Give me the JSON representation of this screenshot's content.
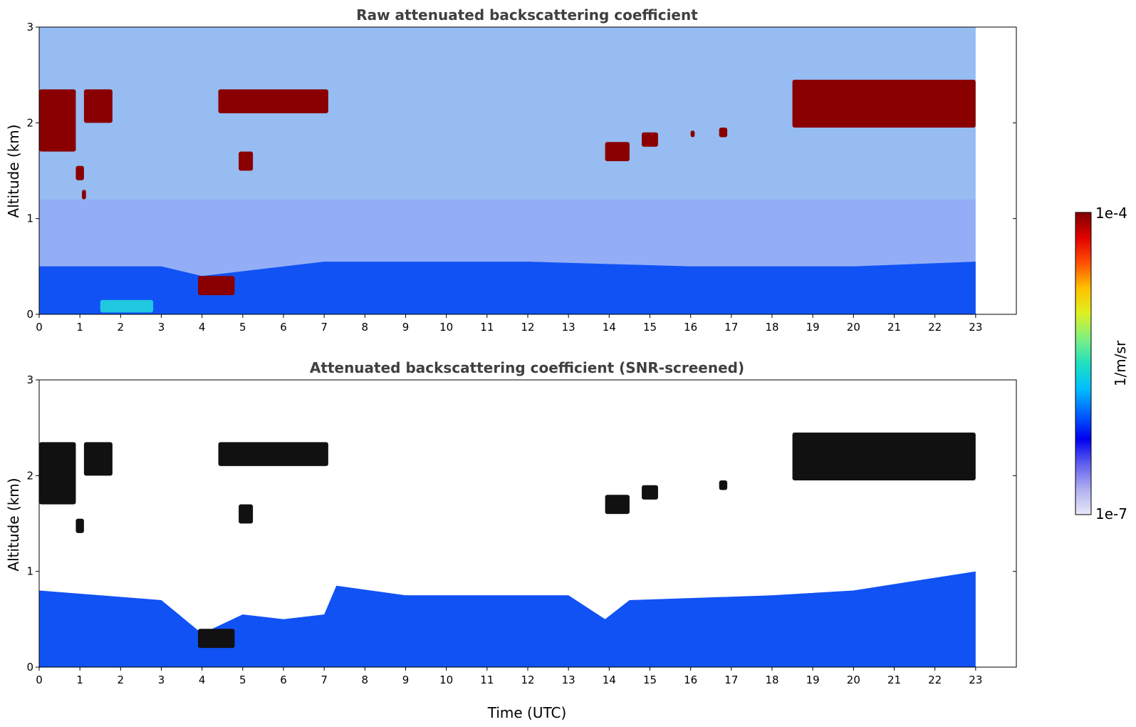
{
  "chart_data": [
    {
      "type": "heatmap",
      "title": "Raw attenuated backscattering coefficient",
      "xlabel": "",
      "ylabel": "Altitude (km)",
      "xlim": [
        0,
        24
      ],
      "ylim": [
        0,
        3
      ],
      "x_ticks": [
        "0",
        "1",
        "2",
        "3",
        "4",
        "5",
        "6",
        "7",
        "8",
        "9",
        "10",
        "11",
        "12",
        "13",
        "14",
        "15",
        "16",
        "17",
        "18",
        "19",
        "20",
        "21",
        "22",
        "23"
      ],
      "y_ticks": [
        "0",
        "1",
        "2",
        "3"
      ],
      "data_time_range_utc": [
        0,
        23
      ],
      "color_scale": "log",
      "boundary_layer_top_km": [
        [
          0,
          0.5
        ],
        [
          3,
          0.5
        ],
        [
          4,
          0.4
        ],
        [
          7,
          0.55
        ],
        [
          12,
          0.55
        ],
        [
          16,
          0.5
        ],
        [
          20,
          0.5
        ],
        [
          23,
          0.55
        ]
      ],
      "features": [
        {
          "time_start": 0.0,
          "time_end": 0.9,
          "alt_bottom": 1.7,
          "alt_top": 2.35,
          "level": "high"
        },
        {
          "time_start": 0.9,
          "time_end": 1.1,
          "alt_bottom": 1.4,
          "alt_top": 1.55,
          "level": "high"
        },
        {
          "time_start": 1.05,
          "time_end": 1.15,
          "alt_bottom": 1.2,
          "alt_top": 1.3,
          "level": "high"
        },
        {
          "time_start": 1.1,
          "time_end": 1.8,
          "alt_bottom": 2.0,
          "alt_top": 2.35,
          "level": "high"
        },
        {
          "time_start": 3.9,
          "time_end": 4.8,
          "alt_bottom": 0.2,
          "alt_top": 0.4,
          "level": "high"
        },
        {
          "time_start": 4.4,
          "time_end": 7.1,
          "alt_bottom": 2.1,
          "alt_top": 2.35,
          "level": "high"
        },
        {
          "time_start": 4.9,
          "time_end": 5.25,
          "alt_bottom": 1.5,
          "alt_top": 1.7,
          "level": "high"
        },
        {
          "time_start": 13.9,
          "time_end": 14.5,
          "alt_bottom": 1.6,
          "alt_top": 1.8,
          "level": "high"
        },
        {
          "time_start": 14.8,
          "time_end": 15.2,
          "alt_bottom": 1.75,
          "alt_top": 1.9,
          "level": "high"
        },
        {
          "time_start": 16.0,
          "time_end": 16.1,
          "alt_bottom": 1.85,
          "alt_top": 1.92,
          "level": "high"
        },
        {
          "time_start": 16.7,
          "time_end": 16.9,
          "alt_bottom": 1.85,
          "alt_top": 1.95,
          "level": "high"
        },
        {
          "time_start": 18.5,
          "time_end": 23.0,
          "alt_bottom": 1.95,
          "alt_top": 2.45,
          "level": "high"
        },
        {
          "time_start": 1.5,
          "time_end": 2.8,
          "alt_bottom": 0.02,
          "alt_top": 0.15,
          "level": "medium"
        }
      ]
    },
    {
      "type": "heatmap",
      "title": "Attenuated backscattering coefficient (SNR-screened)",
      "xlabel": "Time (UTC)",
      "ylabel": "Altitude (km)",
      "xlim": [
        0,
        24
      ],
      "ylim": [
        0,
        3
      ],
      "x_ticks": [
        "0",
        "1",
        "2",
        "3",
        "4",
        "5",
        "6",
        "7",
        "8",
        "9",
        "10",
        "11",
        "12",
        "13",
        "14",
        "15",
        "16",
        "17",
        "18",
        "19",
        "20",
        "21",
        "22",
        "23"
      ],
      "y_ticks": [
        "0",
        "1",
        "2",
        "3"
      ],
      "data_time_range_utc": [
        0,
        23
      ],
      "color_scale": "log",
      "boundary_layer_top_km": [
        [
          0,
          0.8
        ],
        [
          3,
          0.7
        ],
        [
          4,
          0.35
        ],
        [
          5,
          0.55
        ],
        [
          6,
          0.5
        ],
        [
          7,
          0.55
        ],
        [
          7.3,
          0.85
        ],
        [
          9,
          0.75
        ],
        [
          13,
          0.75
        ],
        [
          13.9,
          0.5
        ],
        [
          14.5,
          0.7
        ],
        [
          18,
          0.75
        ],
        [
          20,
          0.8
        ],
        [
          23,
          1.0
        ]
      ],
      "features": [
        {
          "time_start": 0.0,
          "time_end": 0.9,
          "alt_bottom": 1.7,
          "alt_top": 2.35,
          "level": "saturated"
        },
        {
          "time_start": 0.9,
          "time_end": 1.1,
          "alt_bottom": 1.4,
          "alt_top": 1.55,
          "level": "saturated"
        },
        {
          "time_start": 1.1,
          "time_end": 1.8,
          "alt_bottom": 2.0,
          "alt_top": 2.35,
          "level": "saturated"
        },
        {
          "time_start": 3.9,
          "time_end": 4.8,
          "alt_bottom": 0.2,
          "alt_top": 0.4,
          "level": "saturated"
        },
        {
          "time_start": 4.4,
          "time_end": 7.1,
          "alt_bottom": 2.1,
          "alt_top": 2.35,
          "level": "saturated"
        },
        {
          "time_start": 4.9,
          "time_end": 5.25,
          "alt_bottom": 1.5,
          "alt_top": 1.7,
          "level": "saturated"
        },
        {
          "time_start": 13.9,
          "time_end": 14.5,
          "alt_bottom": 1.6,
          "alt_top": 1.8,
          "level": "saturated"
        },
        {
          "time_start": 14.8,
          "time_end": 15.2,
          "alt_bottom": 1.75,
          "alt_top": 1.9,
          "level": "saturated"
        },
        {
          "time_start": 16.7,
          "time_end": 16.9,
          "alt_bottom": 1.85,
          "alt_top": 1.95,
          "level": "saturated"
        },
        {
          "time_start": 18.5,
          "time_end": 23.0,
          "alt_bottom": 1.95,
          "alt_top": 2.45,
          "level": "saturated"
        }
      ]
    }
  ],
  "colorbar": {
    "label": "1/m/sr",
    "max_label": "1e-4",
    "min_label": "1e-7",
    "min_value": 1e-07,
    "max_value": 0.0001,
    "scale": "log",
    "colormap": "jet",
    "colors": [
      "#e8e8f8",
      "#b0b0f0",
      "#6060f0",
      "#0000f0",
      "#0060ff",
      "#00c0ff",
      "#20e0c0",
      "#80f080",
      "#e0f020",
      "#ffc000",
      "#ff5000",
      "#e00000",
      "#800000"
    ]
  }
}
